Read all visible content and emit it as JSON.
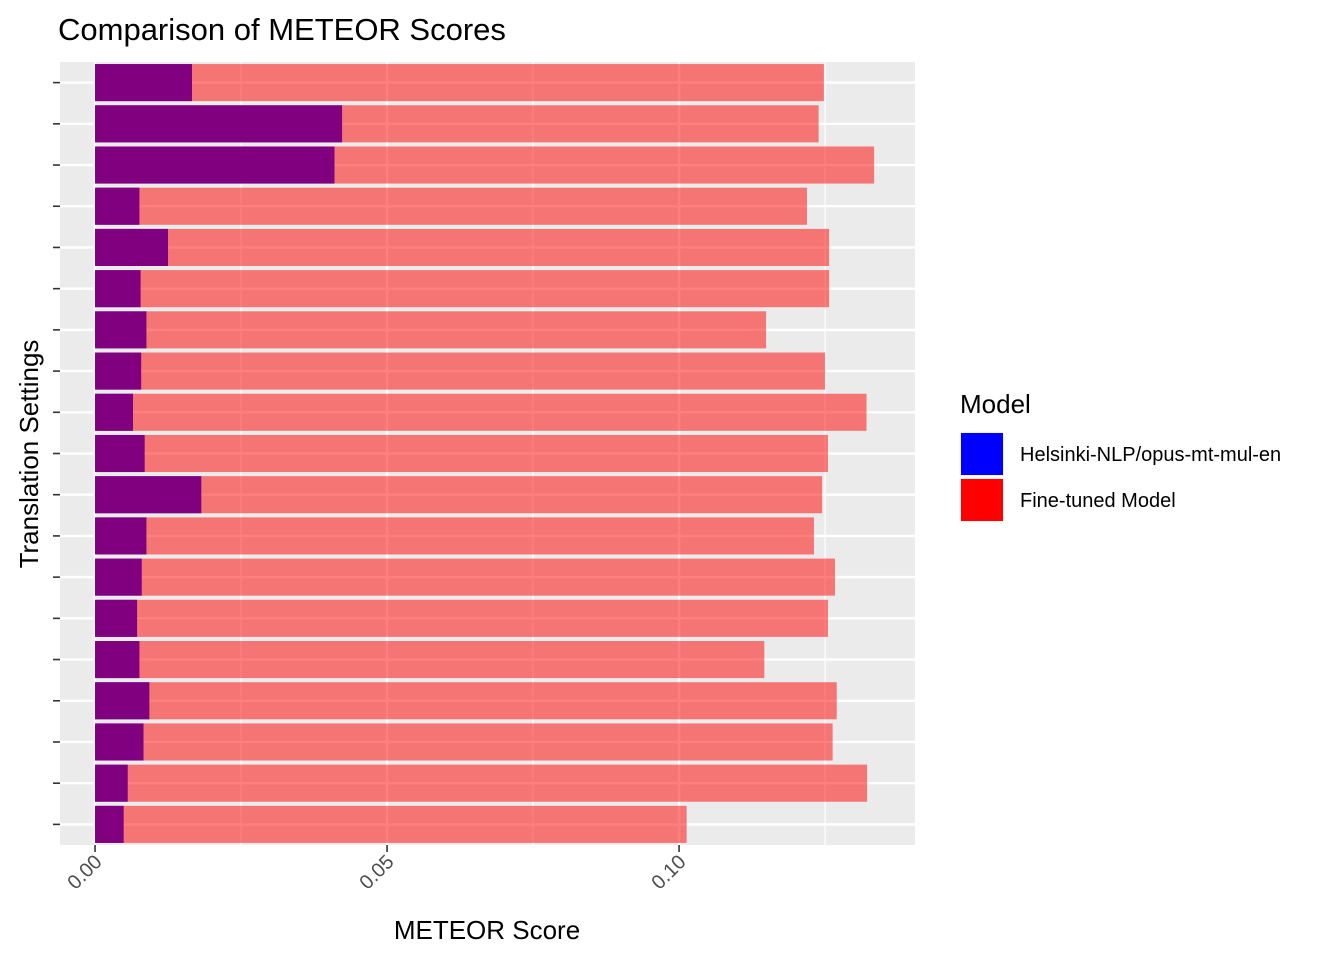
{
  "chart_data": {
    "type": "bar",
    "orientation": "horizontal",
    "title": "Comparison of METEOR Scores",
    "xlabel": "METEOR Score",
    "ylabel": "Translation Settings",
    "xlim": [
      -0.006,
      0.1404
    ],
    "x_ticks": [
      0.0,
      0.05,
      0.1
    ],
    "x_tick_labels": [
      "0.00",
      "0.05",
      "0.10"
    ],
    "categories_count": 19,
    "grid": true,
    "legend_position": "right",
    "legend_title": "Model",
    "series": [
      {
        "name": "Helsinki-NLP/opus-mt-mul-en",
        "color": "#0000ff",
        "values": [
          0.0166,
          0.0423,
          0.041,
          0.0076,
          0.0125,
          0.0078,
          0.0088,
          0.0079,
          0.0065,
          0.0085,
          0.0182,
          0.0088,
          0.008,
          0.0072,
          0.0076,
          0.0093,
          0.0083,
          0.0056,
          0.0049
        ]
      },
      {
        "name": "Fine-tuned Model",
        "color": "#ff0000",
        "values": [
          0.1248,
          0.1239,
          0.1334,
          0.1219,
          0.1257,
          0.1257,
          0.1149,
          0.125,
          0.1321,
          0.1255,
          0.1245,
          0.1231,
          0.1267,
          0.1255,
          0.1146,
          0.127,
          0.1263,
          0.1322,
          0.1013
        ]
      }
    ]
  }
}
